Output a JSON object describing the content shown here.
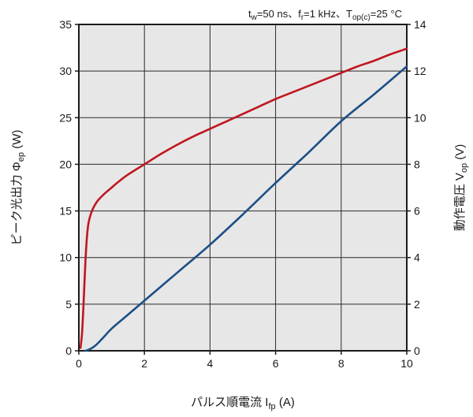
{
  "chart_data": {
    "type": "line",
    "condition_text": {
      "pre": "t",
      "sub1": "w",
      "mid1": "=50 ns、f",
      "sub2": "r",
      "mid2": "=1 kHz、T",
      "sub3": "op(c)",
      "post": "=25 °C"
    },
    "xlabel": {
      "main": "パルス順電流 I",
      "sub": "fp",
      "post": " (A)"
    },
    "ylabel_left": {
      "main": "ピーク光出力 Φ",
      "sub": "ep",
      "post": " (W)"
    },
    "ylabel_right": {
      "main": "動作電圧 V",
      "sub": "op",
      "post": " (V)"
    },
    "xlim": [
      0,
      10
    ],
    "ylim_left": [
      0,
      35
    ],
    "ylim_right": [
      0,
      14
    ],
    "x_ticks": [
      "0",
      "2",
      "4",
      "6",
      "8",
      "10"
    ],
    "y_left_ticks": [
      "0",
      "5",
      "10",
      "15",
      "20",
      "25",
      "30",
      "35"
    ],
    "y_right_ticks": [
      "0",
      "2",
      "4",
      "6",
      "8",
      "10",
      "12",
      "14"
    ],
    "grid": true,
    "series": [
      {
        "axis": "left",
        "color": "#c0161f",
        "x": [
          0.05,
          0.1,
          0.15,
          0.2,
          0.25,
          0.3,
          0.4,
          0.5,
          0.6,
          0.8,
          1.0,
          1.2,
          1.5,
          2.0,
          2.5,
          3.0,
          3.5,
          4.0,
          4.5,
          5.0,
          5.5,
          6.0,
          6.5,
          7.0,
          7.5,
          8.0,
          8.5,
          9.0,
          9.5,
          10.0
        ],
        "y": [
          0.3,
          2.0,
          5.5,
          9.5,
          12.3,
          13.8,
          15.0,
          15.7,
          16.2,
          16.9,
          17.5,
          18.1,
          18.9,
          20.0,
          21.1,
          22.1,
          23.0,
          23.8,
          24.6,
          25.4,
          26.2,
          27.0,
          27.7,
          28.4,
          29.1,
          29.8,
          30.5,
          31.1,
          31.8,
          32.4
        ]
      },
      {
        "axis": "right",
        "color": "#1c4f86",
        "x": [
          0.2,
          0.3,
          0.4,
          0.5,
          0.6,
          0.8,
          1.0,
          1.5,
          2.0,
          3.0,
          4.0,
          5.0,
          6.0,
          7.0,
          8.0,
          9.0,
          10.0
        ],
        "y": [
          0.0,
          0.05,
          0.12,
          0.22,
          0.35,
          0.65,
          0.95,
          1.55,
          2.15,
          3.35,
          4.55,
          5.85,
          7.2,
          8.5,
          9.85,
          11.0,
          12.2
        ]
      }
    ]
  }
}
